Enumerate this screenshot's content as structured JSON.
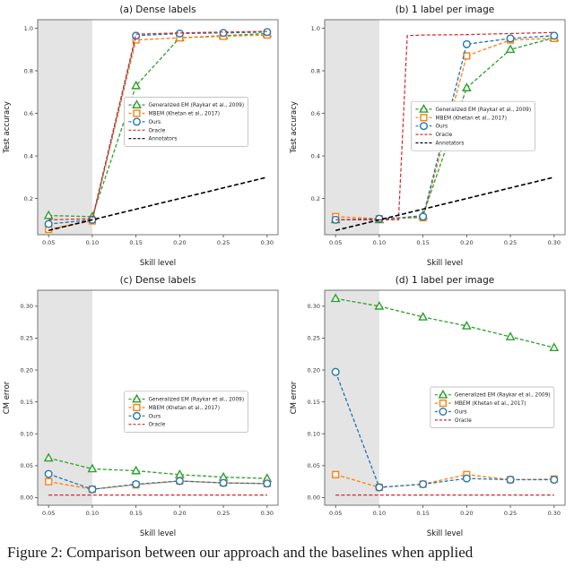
{
  "figure": {
    "caption": "Figure 2:   Comparison between our approach and the baselines when applied"
  },
  "colors": {
    "generalized_em": "#2ca02c",
    "mbem": "#ff7f0e",
    "ours": "#1f77b4",
    "oracle": "#d62728",
    "annotators": "#000000",
    "shaded_band": "#e4e4e4"
  },
  "chart_data": [
    {
      "id": "a",
      "type": "line",
      "title": "(a) Dense labels",
      "xlabel": "Skill level",
      "ylabel": "Test accuracy",
      "xlim": [
        0.0375,
        0.3125
      ],
      "ylim": [
        0.03,
        1.04
      ],
      "xticks": [
        0.05,
        0.1,
        0.15,
        0.2,
        0.25,
        0.3
      ],
      "xtick_labels": [
        "0.05",
        "0.10",
        "0.15",
        "0.20",
        "0.25",
        "0.30"
      ],
      "yticks": [
        0.2,
        0.4,
        0.6,
        0.8,
        1.0
      ],
      "ytick_labels": [
        "0.2",
        "0.4",
        "0.6",
        "0.8",
        "1.0"
      ],
      "band_end": 0.1,
      "grid": false,
      "legend": {
        "x": 0.36,
        "y": 0.36
      },
      "series": [
        {
          "name": "Generalized EM (Raykar et al., 2009)",
          "color": "#2ca02c",
          "marker": "triangle",
          "dash": "4,2.2",
          "width": 1.3,
          "y": [
            0.12,
            0.115,
            0.73,
            0.955,
            0.965,
            0.975
          ]
        },
        {
          "name": "MBEM (Khetan et al., 2017)",
          "color": "#ff7f0e",
          "marker": "square",
          "dash": "4,2.2",
          "width": 1.3,
          "y": [
            0.055,
            0.095,
            0.945,
            0.955,
            0.962,
            0.968
          ]
        },
        {
          "name": "Ours",
          "color": "#1f77b4",
          "marker": "circle",
          "dash": "4,2.2",
          "width": 1.3,
          "y": [
            0.08,
            0.1,
            0.965,
            0.975,
            0.978,
            0.982
          ]
        },
        {
          "name": "Oracle",
          "color": "#d62728",
          "marker": "none",
          "dash": "4,2.2",
          "width": 1.2,
          "y": [
            0.1,
            0.105,
            0.972,
            0.978,
            0.982,
            0.985
          ]
        },
        {
          "name": "Annotators",
          "color": "#000000",
          "marker": "none",
          "dash": "5,2.6",
          "width": 1.6,
          "y": [
            0.05,
            0.1,
            0.15,
            0.2,
            0.25,
            0.3
          ]
        }
      ]
    },
    {
      "id": "b",
      "type": "line",
      "title": "(b) 1 label per image",
      "xlabel": "Skill level",
      "ylabel": "Test accuracy",
      "xlim": [
        0.0375,
        0.3125
      ],
      "ylim": [
        0.03,
        1.04
      ],
      "xticks": [
        0.05,
        0.1,
        0.15,
        0.2,
        0.25,
        0.3
      ],
      "xtick_labels": [
        "0.05",
        "0.10",
        "0.15",
        "0.20",
        "0.25",
        "0.30"
      ],
      "yticks": [
        0.2,
        0.4,
        0.6,
        0.8,
        1.0
      ],
      "ytick_labels": [
        "0.2",
        "0.4",
        "0.6",
        "0.8",
        "1.0"
      ],
      "band_end": 0.1,
      "grid": false,
      "legend": {
        "x": 0.36,
        "y": 0.38
      },
      "series": [
        {
          "name": "Generalized EM (Raykar et al., 2009)",
          "color": "#2ca02c",
          "marker": "triangle",
          "dash": "4,2.2",
          "width": 1.3,
          "y": [
            0.1,
            0.1,
            0.12,
            0.72,
            0.9,
            0.955
          ]
        },
        {
          "name": "MBEM (Khetan et al., 2017)",
          "color": "#ff7f0e",
          "marker": "square",
          "dash": "4,2.2",
          "width": 1.3,
          "y": [
            0.115,
            0.105,
            0.11,
            0.87,
            0.945,
            0.952
          ]
        },
        {
          "name": "Ours",
          "color": "#1f77b4",
          "marker": "circle",
          "dash": "4,2.2",
          "width": 1.3,
          "y": [
            0.1,
            0.105,
            0.115,
            0.925,
            0.952,
            0.965
          ]
        },
        {
          "name": "Oracle",
          "color": "#d62728",
          "marker": "none",
          "dash": "4,2.2",
          "width": 1.2,
          "x": [
            0.05,
            0.1,
            0.122,
            0.132,
            0.15,
            0.2,
            0.25,
            0.3
          ],
          "y": [
            0.1,
            0.1,
            0.1,
            0.965,
            0.968,
            0.97,
            0.975,
            0.98
          ]
        },
        {
          "name": "Annotators",
          "color": "#000000",
          "marker": "none",
          "dash": "5,2.6",
          "width": 1.6,
          "y": [
            0.05,
            0.1,
            0.15,
            0.2,
            0.25,
            0.3
          ]
        }
      ]
    },
    {
      "id": "c",
      "type": "line",
      "title": "(c) Dense labels",
      "xlabel": "Skill level",
      "ylabel": "CM error",
      "xlim": [
        0.0375,
        0.3125
      ],
      "ylim": [
        -0.012,
        0.325
      ],
      "xticks": [
        0.05,
        0.1,
        0.15,
        0.2,
        0.25,
        0.3
      ],
      "xtick_labels": [
        "0.05",
        "0.10",
        "0.15",
        "0.20",
        "0.25",
        "0.30"
      ],
      "yticks": [
        0.0,
        0.05,
        0.1,
        0.15,
        0.2,
        0.25,
        0.3
      ],
      "ytick_labels": [
        "0.00",
        "0.05",
        "0.10",
        "0.15",
        "0.20",
        "0.25",
        "0.30"
      ],
      "band_end": 0.1,
      "grid": false,
      "legend": {
        "x": 0.36,
        "y": 0.47
      },
      "series": [
        {
          "name": "Generalized EM (Raykar et al., 2009)",
          "color": "#2ca02c",
          "marker": "triangle",
          "dash": "4,2.2",
          "width": 1.3,
          "y": [
            0.062,
            0.045,
            0.042,
            0.036,
            0.032,
            0.03
          ]
        },
        {
          "name": "MBEM (Khetan et al., 2017)",
          "color": "#ff7f0e",
          "marker": "square",
          "dash": "4,2.2",
          "width": 1.3,
          "y": [
            0.025,
            0.013,
            0.02,
            0.026,
            0.023,
            0.022
          ]
        },
        {
          "name": "Ours",
          "color": "#1f77b4",
          "marker": "circle",
          "dash": "4,2.2",
          "width": 1.3,
          "y": [
            0.037,
            0.013,
            0.021,
            0.026,
            0.023,
            0.022
          ]
        },
        {
          "name": "Oracle",
          "color": "#d62728",
          "marker": "none",
          "dash": "4,2.2",
          "width": 1.2,
          "y": [
            0.004,
            0.004,
            0.004,
            0.004,
            0.004,
            0.004
          ]
        }
      ]
    },
    {
      "id": "d",
      "type": "line",
      "title": "(d) 1 label per image",
      "xlabel": "Skill level",
      "ylabel": "CM error",
      "xlim": [
        0.0375,
        0.3125
      ],
      "ylim": [
        -0.012,
        0.325
      ],
      "xticks": [
        0.05,
        0.1,
        0.15,
        0.2,
        0.25,
        0.3
      ],
      "xtick_labels": [
        "0.05",
        "0.10",
        "0.15",
        "0.20",
        "0.25",
        "0.30"
      ],
      "yticks": [
        0.0,
        0.05,
        0.1,
        0.15,
        0.2,
        0.25,
        0.3
      ],
      "ytick_labels": [
        "0.00",
        "0.05",
        "0.10",
        "0.15",
        "0.20",
        "0.25",
        "0.30"
      ],
      "band_end": 0.1,
      "grid": false,
      "legend": {
        "x": 0.44,
        "y": 0.45
      },
      "series": [
        {
          "name": "Generalized EM (Raykar et al., 2009)",
          "color": "#2ca02c",
          "marker": "triangle",
          "dash": "4,2.2",
          "width": 1.3,
          "y": [
            0.312,
            0.3,
            0.283,
            0.269,
            0.252,
            0.235
          ]
        },
        {
          "name": "MBEM (Khetan et al., 2017)",
          "color": "#ff7f0e",
          "marker": "square",
          "dash": "4,2.2",
          "width": 1.3,
          "y": [
            0.036,
            0.016,
            0.021,
            0.036,
            0.028,
            0.029
          ]
        },
        {
          "name": "Ours",
          "color": "#1f77b4",
          "marker": "circle",
          "dash": "4,2.2",
          "width": 1.3,
          "y": [
            0.197,
            0.016,
            0.021,
            0.03,
            0.028,
            0.028
          ]
        },
        {
          "name": "Oracle",
          "color": "#d62728",
          "marker": "none",
          "dash": "4,2.2",
          "width": 1.2,
          "y": [
            0.004,
            0.004,
            0.004,
            0.004,
            0.004,
            0.004
          ]
        }
      ]
    }
  ]
}
